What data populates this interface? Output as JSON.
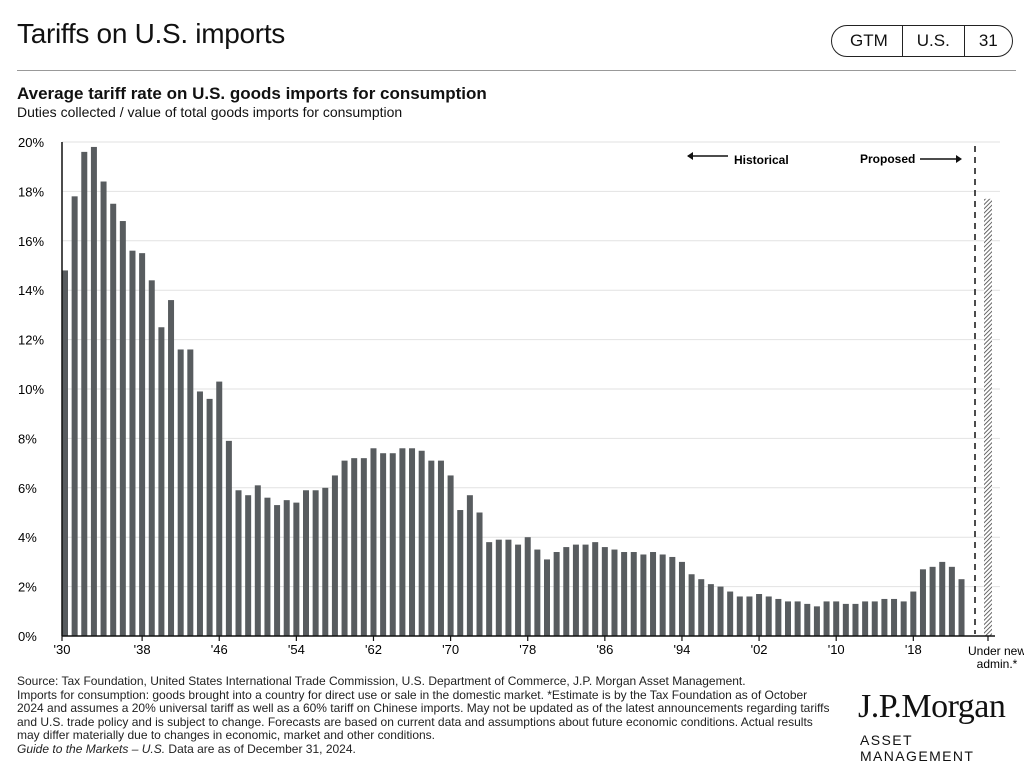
{
  "header": {
    "title": "Tariffs on U.S. imports",
    "badge": [
      "GTM",
      "U.S.",
      "31"
    ]
  },
  "chart_data": {
    "type": "bar",
    "title": "Average tariff rate on U.S. goods imports for consumption",
    "subtitle": "Duties collected / value of total goods imports for consumption",
    "ylim": [
      0,
      20
    ],
    "yticks": [
      "0%",
      "2%",
      "4%",
      "6%",
      "8%",
      "10%",
      "12%",
      "14%",
      "16%",
      "18%",
      "20%"
    ],
    "xticks": [
      "'30",
      "'38",
      "'46",
      "'54",
      "'62",
      "'70",
      "'78",
      "'86",
      "'94",
      "'02",
      "'10",
      "'18"
    ],
    "grid": true,
    "years_start": 1930,
    "values": [
      14.8,
      17.8,
      19.6,
      19.8,
      18.4,
      17.5,
      16.8,
      15.6,
      15.5,
      14.4,
      12.5,
      13.6,
      11.6,
      11.6,
      9.9,
      9.6,
      10.3,
      7.9,
      5.9,
      5.7,
      6.1,
      5.6,
      5.3,
      5.5,
      5.4,
      5.9,
      5.9,
      6.0,
      6.5,
      7.1,
      7.2,
      7.2,
      7.6,
      7.4,
      7.4,
      7.6,
      7.6,
      7.5,
      7.1,
      7.1,
      6.5,
      5.1,
      5.7,
      5.0,
      3.8,
      3.9,
      3.9,
      3.7,
      4.0,
      3.5,
      3.1,
      3.4,
      3.6,
      3.7,
      3.7,
      3.8,
      3.6,
      3.5,
      3.4,
      3.4,
      3.3,
      3.4,
      3.3,
      3.2,
      3.0,
      2.5,
      2.3,
      2.1,
      2.0,
      1.8,
      1.6,
      1.6,
      1.7,
      1.6,
      1.5,
      1.4,
      1.4,
      1.3,
      1.2,
      1.4,
      1.4,
      1.3,
      1.3,
      1.4,
      1.4,
      1.5,
      1.5,
      1.4,
      1.8,
      2.7,
      2.8,
      3.0,
      2.8,
      2.3
    ],
    "projected": {
      "label": "Under new admin.*",
      "value": 17.7
    },
    "annotations": {
      "historical": "Historical",
      "proposed": "Proposed"
    },
    "bar_color": "#585c5f"
  },
  "footer": {
    "source": "Source: Tax Foundation, United States International Trade Commission, U.S. Department of Commerce, J.P. Morgan Asset Management.",
    "note": "Imports for consumption: goods brought into a country for direct use or sale in the domestic market. *Estimate is by the Tax Foundation as of October 2024 and assumes a 20% universal tariff as well as a 60% tariff on Chinese imports. May not be updated as of the latest announcements regarding tariffs and U.S. trade policy and is subject to change. Forecasts are based on current data and assumptions about future economic conditions. Actual results may differ materially due to changes in economic, market and other conditions.",
    "guide": "Guide to the Markets – U.S.",
    "asof": " Data are as of December 31, 2024."
  },
  "logo": {
    "name": "J.P.Morgan",
    "sub": "ASSET MANAGEMENT"
  }
}
